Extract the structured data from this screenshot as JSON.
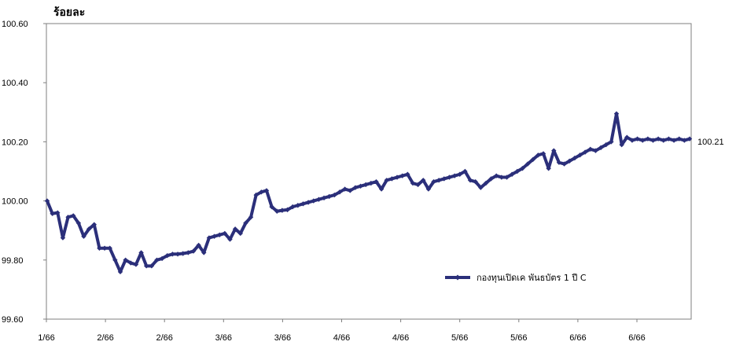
{
  "chart_data": {
    "type": "line",
    "title": "",
    "ylabel": "ร้อยละ",
    "xlabel": "",
    "ylim": [
      99.6,
      100.6
    ],
    "yticks": [
      "99.60",
      "99.80",
      "100.00",
      "100.20",
      "100.40",
      "100.60"
    ],
    "x_tick_labels": [
      "1/66",
      "2/66",
      "2/66",
      "3/66",
      "3/66",
      "4/66",
      "4/66",
      "5/66",
      "5/66",
      "6/66",
      "6/66"
    ],
    "grid": false,
    "legend_position": "right",
    "series": [
      {
        "name": "กองทุนเปิดเค พันธบัตร 1 ปี C",
        "color": "#2b2f7a",
        "end_label": "100.21",
        "x": [
          0,
          1,
          2,
          3,
          4,
          5,
          6,
          7,
          8,
          9,
          10,
          11,
          12,
          13,
          14,
          15,
          16,
          17,
          18,
          19,
          20,
          21,
          22,
          23,
          24,
          25,
          26,
          27,
          28,
          29,
          30,
          31,
          32,
          33,
          34,
          35,
          36,
          37,
          38,
          39,
          40,
          41,
          42,
          43,
          44,
          45,
          46,
          47,
          48,
          49,
          50,
          51,
          52,
          53,
          54,
          55,
          56,
          57,
          58,
          59,
          60,
          61,
          62,
          63,
          64,
          65,
          66,
          67,
          68,
          69,
          70,
          71,
          72,
          73,
          74,
          75,
          76,
          77,
          78,
          79,
          80,
          81,
          82,
          83,
          84,
          85,
          86,
          87,
          88,
          89,
          90,
          91,
          92,
          93,
          94,
          95,
          96,
          97,
          98,
          99,
          100,
          101,
          102,
          103,
          104,
          105,
          106,
          107,
          108,
          109,
          110,
          111,
          112,
          113,
          114,
          115,
          116,
          117,
          118,
          119,
          120,
          121,
          122,
          123
        ],
        "values": [
          100.0,
          99.957,
          99.96,
          99.875,
          99.945,
          99.95,
          99.925,
          99.88,
          99.905,
          99.92,
          99.84,
          99.84,
          99.84,
          99.8,
          99.76,
          99.8,
          99.79,
          99.785,
          99.825,
          99.78,
          99.78,
          99.8,
          99.805,
          99.815,
          99.82,
          99.82,
          99.822,
          99.825,
          99.83,
          99.85,
          99.825,
          99.875,
          99.88,
          99.885,
          99.89,
          99.87,
          99.905,
          99.89,
          99.925,
          99.945,
          100.02,
          100.03,
          100.035,
          99.98,
          99.965,
          99.968,
          99.97,
          99.98,
          99.985,
          99.99,
          99.995,
          100.0,
          100.005,
          100.01,
          100.015,
          100.02,
          100.03,
          100.04,
          100.035,
          100.045,
          100.05,
          100.055,
          100.06,
          100.065,
          100.04,
          100.07,
          100.075,
          100.08,
          100.085,
          100.09,
          100.06,
          100.055,
          100.07,
          100.04,
          100.065,
          100.07,
          100.075,
          100.08,
          100.085,
          100.09,
          100.1,
          100.07,
          100.065,
          100.045,
          100.06,
          100.075,
          100.085,
          100.08,
          100.08,
          100.09,
          100.1,
          100.11,
          100.125,
          100.14,
          100.155,
          100.16,
          100.11,
          100.17,
          100.13,
          100.125,
          100.135,
          100.145,
          100.155,
          100.165,
          100.175,
          100.17,
          100.18,
          100.19,
          100.2,
          100.295,
          100.19,
          100.215,
          100.205,
          100.21,
          100.205,
          100.21,
          100.205,
          100.21,
          100.205,
          100.21,
          100.205,
          100.21,
          100.205,
          100.21
        ]
      }
    ]
  }
}
